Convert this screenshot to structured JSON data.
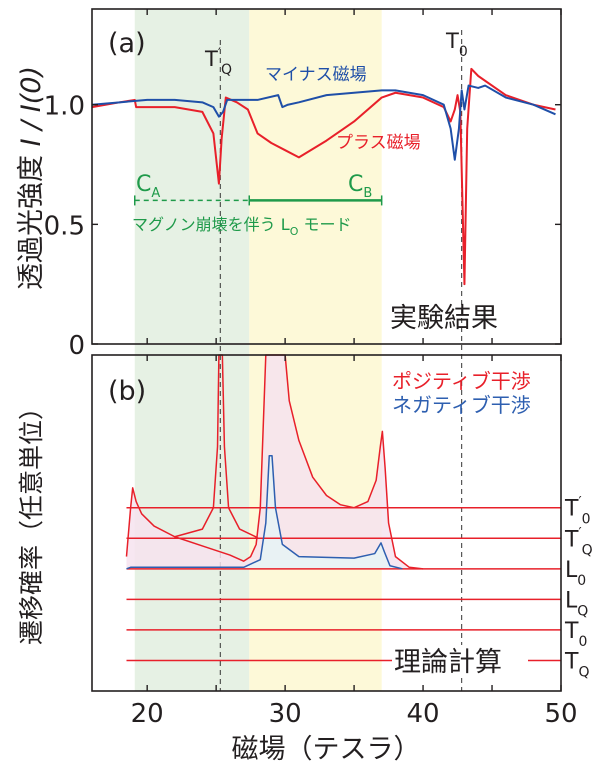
{
  "chart_data": [
    {
      "panel": "(a)",
      "type": "line",
      "xlim": [
        16,
        50
      ],
      "ylim": [
        0,
        1.4
      ],
      "yticks": [
        "0",
        "0.5",
        "1.0"
      ],
      "ylabel": {
        "text": "透過光強度 ",
        "var": "I / I(0)"
      },
      "regions": {
        "green": [
          19.1,
          27.4
        ],
        "yellow": [
          27.4,
          37.0
        ],
        "green_color": "#e6f1e4",
        "yellow_color": "#fdf9d8"
      },
      "dashed_lines": [
        25.3,
        42.8
      ],
      "series": [
        {
          "name": "マイナス磁場",
          "color": "#1f4fa8",
          "points": [
            [
              16,
              1.0
            ],
            [
              18,
              1.01
            ],
            [
              20,
              1.02
            ],
            [
              22,
              1.02
            ],
            [
              24,
              1.01
            ],
            [
              24.8,
              0.99
            ],
            [
              25.2,
              0.95
            ],
            [
              25.5,
              0.97
            ],
            [
              25.8,
              1.02
            ],
            [
              28,
              1.02
            ],
            [
              29.5,
              1.04
            ],
            [
              29.8,
              0.99
            ],
            [
              30.2,
              1.0
            ],
            [
              31,
              1.01
            ],
            [
              33,
              1.04
            ],
            [
              35,
              1.05
            ],
            [
              37,
              1.06
            ],
            [
              38,
              1.06
            ],
            [
              40,
              1.04
            ],
            [
              41.5,
              1.0
            ],
            [
              42,
              0.9
            ],
            [
              42.3,
              0.77
            ],
            [
              42.6,
              0.9
            ],
            [
              42.8,
              1.06
            ],
            [
              43.0,
              0.98
            ],
            [
              43.3,
              1.08
            ],
            [
              44,
              1.07
            ],
            [
              44.5,
              1.08
            ],
            [
              46,
              1.03
            ],
            [
              48,
              1.0
            ],
            [
              49.6,
              0.96
            ]
          ]
        },
        {
          "name": "プラス磁場",
          "color": "#e8202a",
          "points": [
            [
              16,
              0.99
            ],
            [
              18,
              1.01
            ],
            [
              19.1,
              1.02
            ],
            [
              19.2,
              0.99
            ],
            [
              22,
              0.99
            ],
            [
              24,
              0.97
            ],
            [
              24.8,
              0.88
            ],
            [
              25.2,
              0.67
            ],
            [
              25.4,
              0.86
            ],
            [
              25.7,
              1.03
            ],
            [
              26.5,
              1.01
            ],
            [
              27.3,
              0.98
            ],
            [
              28,
              0.88
            ],
            [
              29,
              0.84
            ],
            [
              30,
              0.81
            ],
            [
              31,
              0.78
            ],
            [
              33,
              0.85
            ],
            [
              35,
              0.93
            ],
            [
              37,
              1.03
            ],
            [
              38,
              1.05
            ],
            [
              40,
              1.03
            ],
            [
              41.5,
              0.99
            ],
            [
              42,
              0.93
            ],
            [
              42.3,
              0.98
            ],
            [
              42.5,
              1.04
            ],
            [
              42.7,
              0.97
            ],
            [
              43.0,
              0.25
            ],
            [
              43.2,
              0.9
            ],
            [
              43.5,
              1.15
            ],
            [
              44,
              1.12
            ],
            [
              46,
              1.04
            ],
            [
              48,
              1.0
            ],
            [
              49.6,
              0.98
            ]
          ]
        }
      ],
      "annotations": {
        "panel_label": "(a)",
        "tq_prime": {
          "main": "T",
          "prime": "′",
          "sub": "Q"
        },
        "t0": {
          "main": "T",
          "sub": "0"
        },
        "minus_label": "マイナス磁場",
        "plus_label": "プラス磁場",
        "ca": {
          "main": "C",
          "sub": "A"
        },
        "cb": {
          "main": "C",
          "sub": "B"
        },
        "mode": {
          "pre": "マグノン崩壊を伴う L",
          "sub": "O",
          "post": " モード"
        },
        "result": "実験結果",
        "green_text_color": "#1f9a4a",
        "bracket_level": 0.6
      }
    },
    {
      "panel": "(b)",
      "type": "line",
      "xlim": [
        16,
        50
      ],
      "ylim": [
        -1,
        10
      ],
      "xticks": [
        "20",
        "30",
        "40",
        "50"
      ],
      "xlabel": "磁場（テスラ）",
      "ylabel": "遷移確率（任意単位）",
      "levels": [
        {
          "main": "T",
          "prime": "′",
          "sub": "0",
          "value": 5
        },
        {
          "main": "T",
          "prime": "′",
          "sub": "Q",
          "value": 4
        },
        {
          "main": "L",
          "prime": "",
          "sub": "0",
          "value": 3
        },
        {
          "main": "L",
          "prime": "",
          "sub": "Q",
          "value": 2
        },
        {
          "main": "T",
          "prime": "",
          "sub": "0",
          "value": 1
        },
        {
          "main": "T",
          "prime": "",
          "sub": "Q",
          "value": 0
        }
      ],
      "series": [
        {
          "name": "ポジティブ干渉",
          "color": "#e8202a",
          "fill": "#f6e3ee",
          "points": [
            [
              18.5,
              3.4
            ],
            [
              18.8,
              5.0
            ],
            [
              18.95,
              5.65
            ],
            [
              19.2,
              5.2
            ],
            [
              19.6,
              4.8
            ],
            [
              20.5,
              4.4
            ],
            [
              22,
              4.05
            ],
            [
              24,
              3.75
            ],
            [
              26,
              3.45
            ],
            [
              27,
              3.25
            ],
            [
              27.5,
              3.4
            ],
            [
              27.9,
              3.8
            ],
            [
              28.2,
              5
            ],
            [
              28.4,
              7.5
            ],
            [
              28.6,
              10.5
            ],
            [
              30.0,
              10.5
            ],
            [
              30.3,
              8.5
            ],
            [
              31,
              7.2
            ],
            [
              32,
              6.0
            ],
            [
              33,
              5.4
            ],
            [
              34,
              5.1
            ],
            [
              35,
              5.0
            ],
            [
              36,
              5.2
            ],
            [
              36.6,
              5.9
            ],
            [
              36.9,
              7.0
            ],
            [
              37.05,
              7.5
            ],
            [
              37.25,
              6.3
            ],
            [
              37.5,
              4.5
            ],
            [
              38,
              3.4
            ],
            [
              39,
              3.05
            ],
            [
              40,
              3.0
            ]
          ]
        },
        {
          "name": "",
          "color": "#e8202a",
          "points": [
            [
              22,
              4.05
            ],
            [
              24,
              4.3
            ],
            [
              24.8,
              5
            ],
            [
              25.1,
              7
            ],
            [
              25.2,
              10.5
            ],
            [
              25.45,
              10.5
            ],
            [
              25.6,
              7
            ],
            [
              25.9,
              5
            ],
            [
              26.7,
              4.3
            ],
            [
              28,
              4.02
            ]
          ]
        },
        {
          "name": "ネガティブ干渉",
          "color": "#2e5fb0",
          "fill": "#e6f3f6",
          "points": [
            [
              18.5,
              3.0
            ],
            [
              18.8,
              3.05
            ],
            [
              27,
              3.05
            ],
            [
              28.2,
              3.3
            ],
            [
              28.6,
              4.5
            ],
            [
              28.85,
              6.7
            ],
            [
              29.05,
              6.7
            ],
            [
              29.3,
              5
            ],
            [
              29.8,
              3.8
            ],
            [
              31,
              3.4
            ],
            [
              35,
              3.35
            ],
            [
              36.5,
              3.5
            ],
            [
              36.95,
              3.85
            ],
            [
              37.2,
              3.55
            ],
            [
              37.6,
              3.1
            ],
            [
              38.5,
              3.0
            ]
          ]
        }
      ],
      "annotations": {
        "panel_label": "(b)",
        "positive": "ポジティブ干渉",
        "negative": "ネガティブ干渉",
        "theory": "理論計算"
      }
    }
  ]
}
